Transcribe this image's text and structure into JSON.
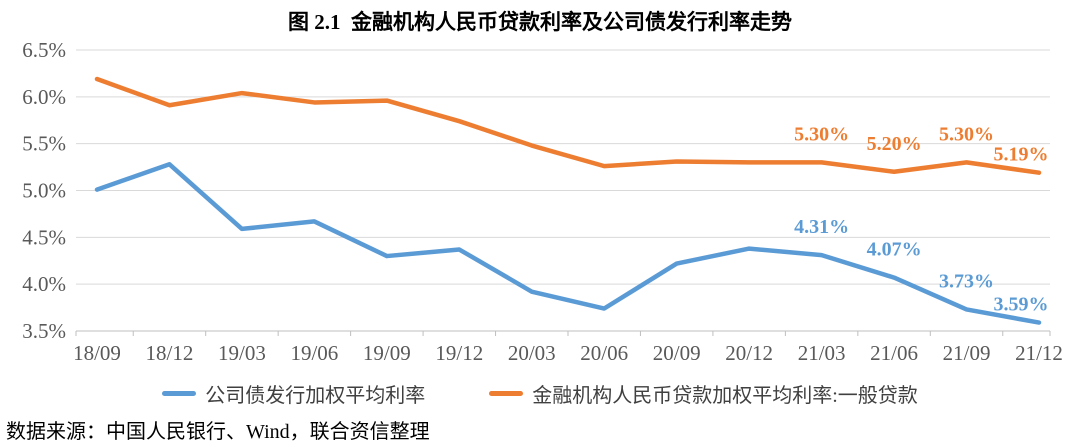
{
  "title": "图 2.1  金融机构人民币贷款利率及公司债发行利率走势",
  "source": "数据来源：中国人民银行、Wind，联合资信整理",
  "chart_data": {
    "type": "line",
    "title": "图 2.1  金融机构人民币贷款利率及公司债发行利率走势",
    "xlabel": "",
    "ylabel": "",
    "categories": [
      "18/09",
      "18/12",
      "19/03",
      "19/06",
      "19/09",
      "19/12",
      "20/03",
      "20/06",
      "20/09",
      "20/12",
      "21/03",
      "21/06",
      "21/09",
      "21/12"
    ],
    "series": [
      {
        "name": "公司债发行加权平均利率",
        "color": "#5B9BD5",
        "values": [
          5.01,
          5.28,
          4.59,
          4.67,
          4.3,
          4.37,
          3.92,
          3.74,
          4.22,
          4.38,
          4.31,
          4.07,
          3.73,
          3.59
        ],
        "point_labels": [
          null,
          null,
          null,
          null,
          null,
          null,
          null,
          null,
          null,
          null,
          "4.31%",
          "4.07%",
          "3.73%",
          "3.59%"
        ]
      },
      {
        "name": "金融机构人民币贷款加权平均利率:一般贷款",
        "color": "#ED7D31",
        "values": [
          6.19,
          5.91,
          6.04,
          5.94,
          5.96,
          5.74,
          5.48,
          5.26,
          5.31,
          5.3,
          5.3,
          5.2,
          5.3,
          5.19
        ],
        "point_labels": [
          null,
          null,
          null,
          null,
          null,
          null,
          null,
          null,
          null,
          null,
          "5.30%",
          "5.20%",
          "5.30%",
          "5.19%"
        ]
      }
    ],
    "ylim": [
      3.5,
      6.5
    ],
    "ytick_step": 0.5,
    "ytick_labels": [
      "6.5%",
      "6.0%",
      "5.5%",
      "5.0%",
      "4.5%",
      "4.0%",
      "3.5%"
    ],
    "grid": true,
    "legend_position": "bottom",
    "colors": {
      "grid": "#D9D9D9",
      "axis": "#BFBFBF",
      "axis_text": "#595959"
    }
  }
}
